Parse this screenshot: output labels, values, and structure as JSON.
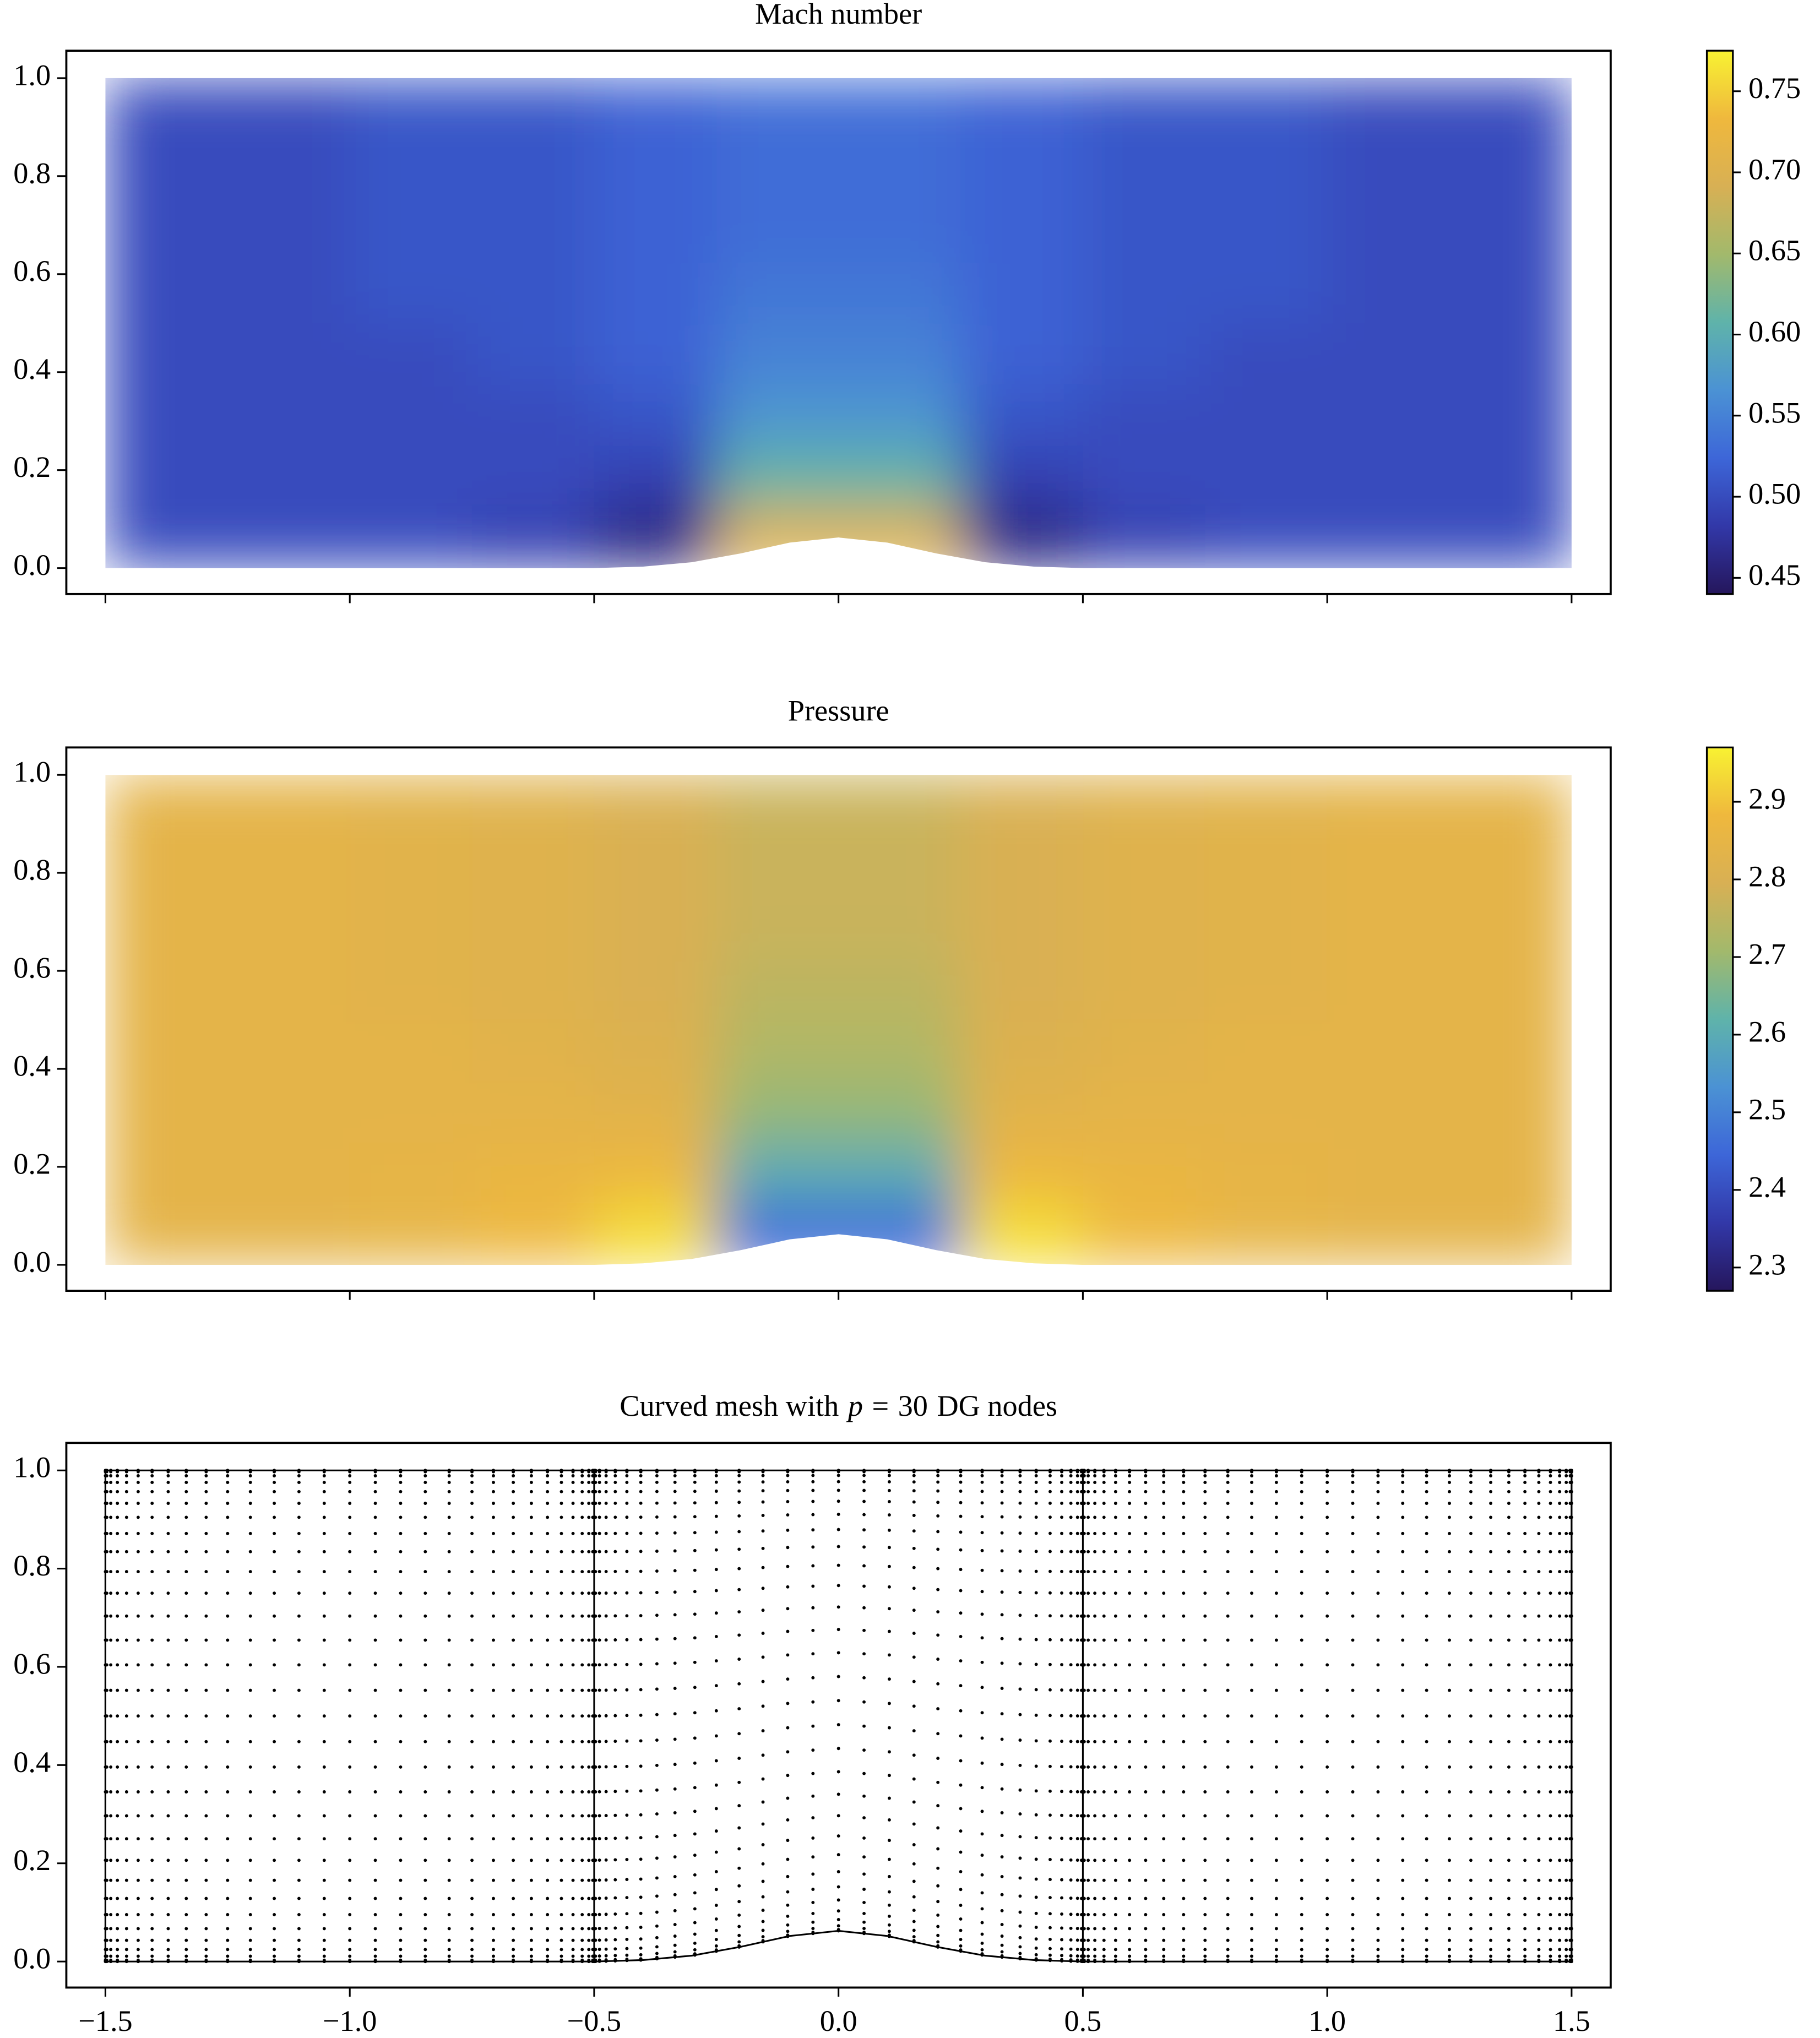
{
  "chart_data": [
    {
      "type": "field",
      "title": "Mach number",
      "xlim": [
        -1.58,
        1.58
      ],
      "ylim": [
        -0.053,
        1.056
      ],
      "xticks": [
        {
          "value": -1.5,
          "label": "−1.5"
        },
        {
          "value": -1,
          "label": "−1.0"
        },
        {
          "value": -0.5,
          "label": "−0.5"
        },
        {
          "value": 0,
          "label": "0.0"
        },
        0.5,
        {
          "value": 1,
          "label": "1.0"
        },
        1.5
      ],
      "show_xtick_labels": false,
      "yticks": [
        {
          "value": 0,
          "label": "0.0"
        },
        0.2,
        0.4,
        0.6,
        0.8,
        {
          "value": 1,
          "label": "1.0"
        }
      ],
      "xbins": [
        -1.5,
        -1.25,
        -1,
        -0.75,
        -0.5,
        -0.25,
        0,
        0.25,
        0.5,
        0.75,
        1,
        1.25,
        1.5
      ],
      "ybins": [
        0,
        0.125,
        0.25,
        0.375,
        0.5,
        0.625,
        0.75,
        0.875,
        1
      ],
      "values": [
        [
          0.5,
          0.5,
          0.5,
          0.49,
          0.46,
          0.7,
          0.7,
          0.46,
          0.49,
          0.5,
          0.5,
          0.5
        ],
        [
          0.5,
          0.5,
          0.5,
          0.5,
          0.49,
          0.61,
          0.61,
          0.49,
          0.5,
          0.5,
          0.5,
          0.5
        ],
        [
          0.5,
          0.5,
          0.5,
          0.5,
          0.51,
          0.57,
          0.57,
          0.51,
          0.5,
          0.5,
          0.5,
          0.5
        ],
        [
          0.5,
          0.5,
          0.5,
          0.51,
          0.52,
          0.55,
          0.55,
          0.52,
          0.51,
          0.5,
          0.5,
          0.5
        ],
        [
          0.5,
          0.5,
          0.51,
          0.51,
          0.52,
          0.54,
          0.54,
          0.52,
          0.51,
          0.51,
          0.5,
          0.5
        ],
        [
          0.5,
          0.5,
          0.51,
          0.51,
          0.52,
          0.53,
          0.53,
          0.52,
          0.51,
          0.51,
          0.5,
          0.5
        ],
        [
          0.5,
          0.5,
          0.51,
          0.51,
          0.52,
          0.53,
          0.53,
          0.52,
          0.51,
          0.51,
          0.5,
          0.5
        ],
        [
          0.5,
          0.5,
          0.51,
          0.51,
          0.52,
          0.53,
          0.53,
          0.52,
          0.51,
          0.51,
          0.5,
          0.5
        ]
      ],
      "bump": {
        "x": [
          -0.5,
          -0.4,
          -0.3,
          -0.2,
          -0.1,
          0,
          0.1,
          0.2,
          0.3,
          0.4,
          0.5
        ],
        "y": [
          0,
          0.003,
          0.012,
          0.03,
          0.052,
          0.0625,
          0.052,
          0.03,
          0.012,
          0.003,
          0
        ]
      },
      "clim": [
        0.44,
        0.775
      ],
      "cticks": [
        0.45,
        {
          "value": 0.5,
          "label": "0.50"
        },
        0.55,
        {
          "value": 0.6,
          "label": "0.60"
        },
        0.65,
        {
          "value": 0.7,
          "label": "0.70"
        },
        0.75
      ],
      "colormap": [
        "#25165c",
        "#3238a8",
        "#3d66d8",
        "#4b92d4",
        "#5fb3aa",
        "#a2b96c",
        "#d8b054",
        "#efb83d",
        "#f8f232"
      ]
    },
    {
      "type": "field",
      "title": "Pressure",
      "xlim": [
        -1.58,
        1.58
      ],
      "ylim": [
        -0.053,
        1.056
      ],
      "xticks": [
        {
          "value": -1.5,
          "label": "−1.5"
        },
        {
          "value": -1,
          "label": "−1.0"
        },
        {
          "value": -0.5,
          "label": "−0.5"
        },
        {
          "value": 0,
          "label": "0.0"
        },
        0.5,
        {
          "value": 1,
          "label": "1.0"
        },
        1.5
      ],
      "show_xtick_labels": false,
      "yticks": [
        {
          "value": 0,
          "label": "0.0"
        },
        0.2,
        0.4,
        0.6,
        0.8,
        {
          "value": 1,
          "label": "1.0"
        }
      ],
      "xbins": [
        -1.5,
        -1.25,
        -1,
        -0.75,
        -0.5,
        -0.25,
        0,
        0.25,
        0.5,
        0.75,
        1,
        1.25,
        1.5
      ],
      "ybins": [
        0,
        0.125,
        0.25,
        0.375,
        0.5,
        0.625,
        0.75,
        0.875,
        1
      ],
      "values": [
        [
          2.84,
          2.84,
          2.85,
          2.88,
          2.94,
          2.45,
          2.45,
          2.94,
          2.88,
          2.85,
          2.84,
          2.84
        ],
        [
          2.84,
          2.84,
          2.85,
          2.86,
          2.87,
          2.6,
          2.6,
          2.87,
          2.86,
          2.85,
          2.84,
          2.84
        ],
        [
          2.84,
          2.84,
          2.84,
          2.84,
          2.83,
          2.69,
          2.69,
          2.83,
          2.84,
          2.84,
          2.84,
          2.84
        ],
        [
          2.84,
          2.84,
          2.84,
          2.83,
          2.81,
          2.73,
          2.73,
          2.81,
          2.83,
          2.84,
          2.84,
          2.84
        ],
        [
          2.84,
          2.84,
          2.83,
          2.82,
          2.8,
          2.75,
          2.75,
          2.8,
          2.82,
          2.83,
          2.84,
          2.84
        ],
        [
          2.84,
          2.84,
          2.83,
          2.82,
          2.8,
          2.77,
          2.77,
          2.8,
          2.82,
          2.83,
          2.84,
          2.84
        ],
        [
          2.84,
          2.84,
          2.83,
          2.82,
          2.8,
          2.77,
          2.77,
          2.8,
          2.82,
          2.83,
          2.84,
          2.84
        ],
        [
          2.84,
          2.84,
          2.83,
          2.82,
          2.8,
          2.77,
          2.77,
          2.8,
          2.82,
          2.83,
          2.84,
          2.84
        ]
      ],
      "bump": {
        "x": [
          -0.5,
          -0.4,
          -0.3,
          -0.2,
          -0.1,
          0,
          0.1,
          0.2,
          0.3,
          0.4,
          0.5
        ],
        "y": [
          0,
          0.003,
          0.012,
          0.03,
          0.052,
          0.0625,
          0.052,
          0.03,
          0.012,
          0.003,
          0
        ]
      },
      "clim": [
        2.27,
        2.97
      ],
      "cticks": [
        2.3,
        2.4,
        2.5,
        2.6,
        2.7,
        2.8,
        2.9
      ],
      "colormap": [
        "#25165c",
        "#3238a8",
        "#3d66d8",
        "#4b92d4",
        "#5fb3aa",
        "#a2b96c",
        "#d8b054",
        "#efb83d",
        "#f8f232"
      ]
    },
    {
      "type": "mesh",
      "title": [
        "Curved mesh with",
        "p",
        "=",
        30,
        "DG nodes"
      ],
      "xlim": [
        -1.58,
        1.58
      ],
      "ylim": [
        -0.053,
        1.056
      ],
      "xticks": [
        {
          "value": -1.5,
          "label": "−1.5"
        },
        {
          "value": -1,
          "label": "−1.0"
        },
        {
          "value": -0.5,
          "label": "−0.5"
        },
        {
          "value": 0,
          "label": "0.0"
        },
        0.5,
        {
          "value": 1,
          "label": "1.0"
        },
        1.5
      ],
      "show_xtick_labels": true,
      "yticks": [
        {
          "value": 0,
          "label": "0.0"
        },
        0.2,
        0.4,
        0.6,
        0.8,
        {
          "value": 1,
          "label": "1.0"
        }
      ],
      "element_edges": [
        -1.5,
        -0.5,
        0.5,
        1.5
      ],
      "bump": {
        "x": [
          -0.5,
          -0.4,
          -0.3,
          -0.2,
          -0.1,
          0,
          0.1,
          0.2,
          0.3,
          0.4,
          0.5
        ],
        "y": [
          0,
          0.003,
          0.012,
          0.03,
          0.052,
          0.0625,
          0.052,
          0.03,
          0.012,
          0.003,
          0
        ]
      }
    }
  ]
}
